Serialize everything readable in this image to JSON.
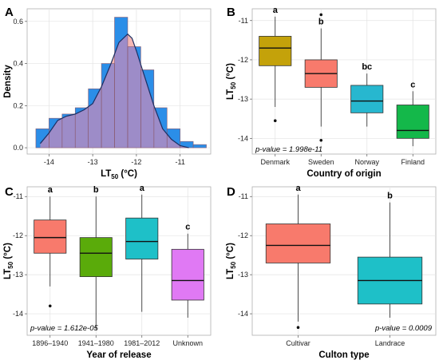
{
  "chart_data": [
    {
      "panel": "A",
      "type": "histogram",
      "xlabel": "LT",
      "xlabel_sub": "50",
      "xlabel_unit": " (°C)",
      "ylabel": "Density",
      "xlim": [
        -14.5,
        -10.3
      ],
      "ylim": [
        -0.03,
        0.66
      ],
      "xticks": [
        -14,
        -13,
        -12,
        -11
      ],
      "xtick_labels": [
        "-14",
        "-13",
        "-12",
        "-11"
      ],
      "yticks": [
        0.0,
        0.2,
        0.4,
        0.6
      ],
      "ytick_labels": [
        "0.0",
        "0.2",
        "0.4",
        "0.6"
      ],
      "grid": true,
      "bin_edges": [
        -14.3,
        -14.0,
        -13.7,
        -13.4,
        -13.1,
        -12.8,
        -12.5,
        -12.2,
        -11.9,
        -11.6,
        -11.3,
        -11.0,
        -10.7,
        -10.4
      ],
      "bin_density": [
        0.09,
        0.14,
        0.16,
        0.19,
        0.28,
        0.4,
        0.62,
        0.48,
        0.37,
        0.19,
        0.09,
        0.03,
        0.015
      ],
      "kde_x": [
        -14.2,
        -14.0,
        -13.8,
        -13.6,
        -13.4,
        -13.2,
        -13.0,
        -12.8,
        -12.6,
        -12.4,
        -12.2,
        -12.1,
        -12.0,
        -11.8,
        -11.6,
        -11.4,
        -11.2,
        -11.0,
        -10.8
      ],
      "kde_y": [
        0.02,
        0.07,
        0.13,
        0.15,
        0.16,
        0.18,
        0.21,
        0.29,
        0.39,
        0.5,
        0.54,
        0.52,
        0.46,
        0.33,
        0.2,
        0.09,
        0.04,
        0.01,
        0.0
      ],
      "colors": {
        "bar": "#2b8ee8",
        "bar_edge": "#1f4a8a",
        "overlap": "#9d8cc8",
        "kde_fill": "#f4b8b4",
        "kde_line": "#1b2f63"
      }
    },
    {
      "panel": "B",
      "type": "boxplot",
      "xlabel": "Country of origin",
      "ylabel": "LT",
      "ylabel_sub": "50",
      "ylabel_unit": " (°C)",
      "ylim": [
        -14.4,
        -10.7
      ],
      "yticks": [
        -14,
        -13,
        -12,
        -11
      ],
      "ytick_labels": [
        "-14",
        "-13",
        "-12",
        "-11"
      ],
      "grid": true,
      "annotation": "p-value = 1.998e-11",
      "annotation_position": "bottom-left",
      "groups": [
        {
          "name": "Denmark",
          "letter": "a",
          "color": "#c4a20a",
          "whisker_low": -13.2,
          "q1": -12.15,
          "median": -11.7,
          "q3": -11.4,
          "whisker_high": -10.9,
          "outliers": [
            -13.55
          ]
        },
        {
          "name": "Sweden",
          "letter": "b",
          "color": "#f87a6c",
          "whisker_low": -13.7,
          "q1": -12.7,
          "median": -12.35,
          "q3": -12.0,
          "whisker_high": -11.2,
          "outliers": [
            -10.85,
            -14.05
          ]
        },
        {
          "name": "Norway",
          "letter": "bc",
          "color": "#27b7cf",
          "whisker_low": -13.7,
          "q1": -13.35,
          "median": -13.05,
          "q3": -12.65,
          "whisker_high": -12.35,
          "outliers": []
        },
        {
          "name": "Finland",
          "letter": "c",
          "color": "#14b84a",
          "whisker_low": -14.2,
          "q1": -14.0,
          "median": -13.8,
          "q3": -13.15,
          "whisker_high": -12.8,
          "outliers": []
        }
      ]
    },
    {
      "panel": "C",
      "type": "boxplot",
      "xlabel": "Year of release",
      "ylabel": "LT",
      "ylabel_sub": "50",
      "ylabel_unit": " (°C)",
      "ylim": [
        -14.55,
        -10.75
      ],
      "yticks": [
        -14,
        -13,
        -12,
        -11
      ],
      "ytick_labels": [
        "-14",
        "-13",
        "-12",
        "-11"
      ],
      "grid": true,
      "annotation": "p-value = 1.612e-05",
      "annotation_position": "bottom-left",
      "groups": [
        {
          "name": "1896–1940",
          "letter": "a",
          "color": "#f87a6c",
          "whisker_low": -13.3,
          "q1": -12.45,
          "median": -12.05,
          "q3": -11.6,
          "whisker_high": -11.0,
          "outliers": [
            -13.8
          ]
        },
        {
          "name": "1941–1980",
          "letter": "b",
          "color": "#5aab0a",
          "whisker_low": -14.4,
          "q1": -13.05,
          "median": -12.45,
          "q3": -12.05,
          "whisker_high": -11.0,
          "outliers": []
        },
        {
          "name": "1981–2012",
          "letter": "a",
          "color": "#1ec0c8",
          "whisker_low": -13.95,
          "q1": -12.6,
          "median": -12.15,
          "q3": -11.55,
          "whisker_high": -10.95,
          "outliers": []
        },
        {
          "name": "Unknown",
          "letter": "c",
          "color": "#e079f4",
          "whisker_low": -14.1,
          "q1": -13.65,
          "median": -13.15,
          "q3": -12.35,
          "whisker_high": -11.95,
          "outliers": []
        }
      ]
    },
    {
      "panel": "D",
      "type": "boxplot",
      "xlabel": "Culton type",
      "ylabel": "LT",
      "ylabel_sub": "50",
      "ylabel_unit": " (°C)",
      "ylim": [
        -14.55,
        -10.75
      ],
      "yticks": [
        -14,
        -13,
        -12,
        -11
      ],
      "ytick_labels": [
        "-14",
        "-13",
        "-12",
        "-11"
      ],
      "grid": true,
      "annotation": "p-value = 0.0009",
      "annotation_position": "bottom-right",
      "groups": [
        {
          "name": "Cultivar",
          "letter": "a",
          "color": "#f87a6c",
          "whisker_low": -14.2,
          "q1": -12.7,
          "median": -12.25,
          "q3": -11.7,
          "whisker_high": -10.95,
          "outliers": [
            -14.35
          ]
        },
        {
          "name": "Landrace",
          "letter": "b",
          "color": "#1ec0c8",
          "whisker_low": -14.1,
          "q1": -13.75,
          "median": -13.15,
          "q3": -12.55,
          "whisker_high": -11.15,
          "outliers": []
        }
      ]
    }
  ]
}
